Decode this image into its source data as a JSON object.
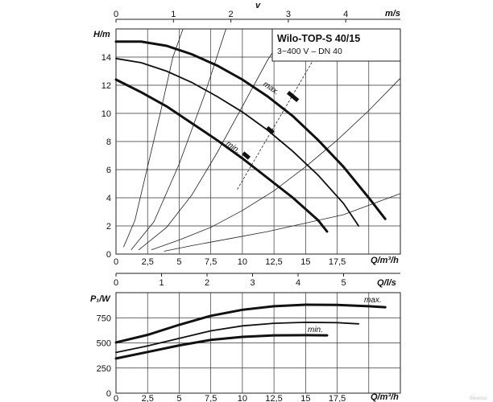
{
  "watermark": "Bewoop",
  "chart_data": [
    {
      "type": "line",
      "title": "Wilo-TOP-S 40/15",
      "subtitle": "3~400 V – DN 40",
      "ylabel": "H/m",
      "xlabel": "Q/m³/h",
      "secondary_top_label_v": "v",
      "secondary_top_label_ms": "m/s",
      "xlim": [
        0,
        22.5
      ],
      "ylim": [
        0,
        16
      ],
      "x_ticks": [
        "0",
        "2,5",
        "5",
        "7,5",
        "10",
        "12,5",
        "15",
        "17,5"
      ],
      "y_ticks": [
        "0",
        "2",
        "4",
        "6",
        "8",
        "10",
        "12",
        "14"
      ],
      "top_ticks": [
        "0",
        "1",
        "2",
        "3",
        "4"
      ],
      "grid": true,
      "curve_labels": {
        "max": "max.",
        "min": "min."
      },
      "series": [
        {
          "name": "max.",
          "x": [
            0,
            2,
            4,
            6,
            8,
            10,
            12,
            14,
            16,
            18,
            20,
            21.3
          ],
          "y": [
            15.1,
            15.1,
            14.8,
            14.2,
            13.4,
            12.4,
            11.2,
            9.8,
            8.1,
            6.2,
            4.0,
            2.5
          ]
        },
        {
          "name": "",
          "x": [
            0,
            2,
            4,
            6,
            8,
            10,
            12,
            14,
            16,
            18,
            19.2
          ],
          "y": [
            13.9,
            13.6,
            13.0,
            12.2,
            11.2,
            10.1,
            8.8,
            7.3,
            5.6,
            3.6,
            2.0
          ]
        },
        {
          "name": "min.",
          "x": [
            0,
            2,
            4,
            6,
            8,
            10,
            12,
            14,
            16,
            16.7
          ],
          "y": [
            12.4,
            11.5,
            10.5,
            9.3,
            8.1,
            6.8,
            5.4,
            4.0,
            2.4,
            1.6
          ]
        }
      ],
      "system_curves": [
        {
          "x": [
            0.6,
            1.5,
            2.5,
            3.5,
            4.5,
            5.3
          ],
          "y": [
            0.5,
            2.4,
            6.2,
            10.0,
            14.0,
            16.0
          ]
        },
        {
          "x": [
            1.2,
            3,
            5,
            7,
            8.7
          ],
          "y": [
            0.3,
            2.3,
            6.4,
            11.3,
            16.0
          ]
        },
        {
          "x": [
            1.8,
            4,
            6,
            8,
            10,
            12,
            13.6
          ],
          "y": [
            0.3,
            1.9,
            4.2,
            7.2,
            10.5,
            13.8,
            16.0
          ]
        },
        {
          "x": [
            2.8,
            5,
            7.5,
            10,
            12.5,
            15,
            17.5,
            20,
            22.5
          ],
          "y": [
            0.3,
            1.0,
            1.9,
            3.1,
            4.5,
            6.2,
            8.1,
            10.2,
            12.5
          ]
        },
        {
          "x": [
            3.8,
            6,
            9,
            12,
            15,
            18,
            22.5
          ],
          "y": [
            0.2,
            0.6,
            1.1,
            1.6,
            2.2,
            2.8,
            4.3
          ]
        }
      ],
      "markers": [
        {
          "x": 14.0,
          "y": 11.2
        },
        {
          "x": 12.2,
          "y": 8.8
        },
        {
          "x": 10.3,
          "y": 7.0
        }
      ]
    },
    {
      "type": "line",
      "ylabel": "P₁/W",
      "xlabel": "Q/m³/h",
      "secondary_top_label": "Q/l/s",
      "xlim": [
        0,
        22.5
      ],
      "ylim": [
        0,
        1000
      ],
      "x_ticks": [
        "0",
        "2,5",
        "5",
        "7,5",
        "10",
        "12,5",
        "15",
        "17,5"
      ],
      "y_ticks": [
        "0",
        "250",
        "500",
        "750"
      ],
      "top_ticks": [
        "0",
        "1",
        "2",
        "3",
        "4",
        "5"
      ],
      "grid": true,
      "curve_labels": {
        "max": "max.",
        "min": "min."
      },
      "series": [
        {
          "name": "max.",
          "x": [
            0,
            2.5,
            5,
            7.5,
            10,
            12.5,
            15,
            17.5,
            20,
            21.3
          ],
          "y": [
            505,
            580,
            680,
            770,
            830,
            865,
            880,
            878,
            865,
            855
          ]
        },
        {
          "name": "",
          "x": [
            0,
            2.5,
            5,
            7.5,
            10,
            12.5,
            15,
            17.5,
            19.2
          ],
          "y": [
            405,
            470,
            545,
            620,
            670,
            695,
            705,
            702,
            690
          ]
        },
        {
          "name": "min.",
          "x": [
            0,
            2.5,
            5,
            7.5,
            10,
            12.5,
            15,
            16.7
          ],
          "y": [
            345,
            410,
            475,
            530,
            560,
            575,
            577,
            575
          ]
        }
      ]
    }
  ]
}
